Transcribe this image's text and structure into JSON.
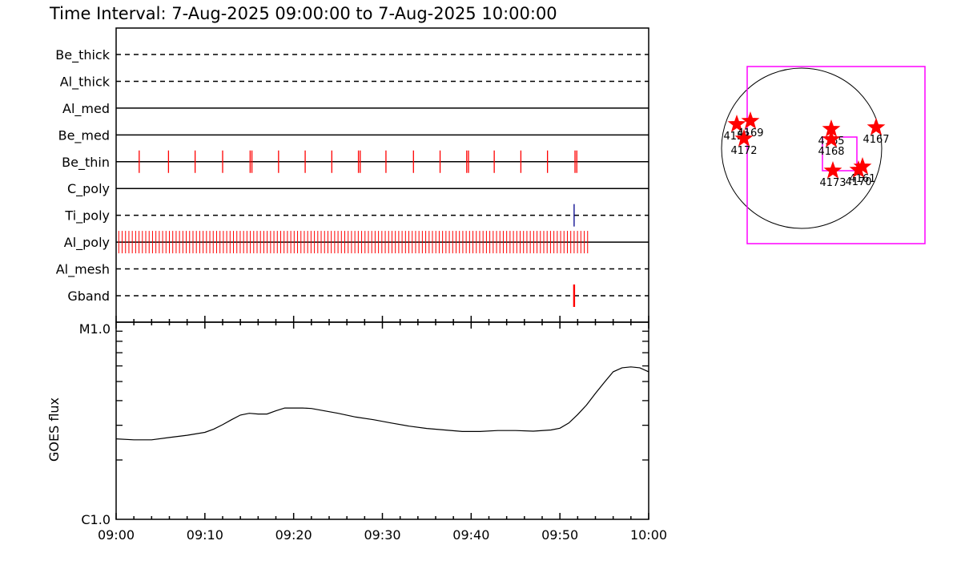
{
  "title": "Time Interval:  7-Aug-2025 09:00:00 to  7-Aug-2025 10:00:00",
  "colors": {
    "event_red": "#ff0000",
    "event_blue": "#00008b",
    "fov_magenta": "#ff00ff",
    "axis": "#000000"
  },
  "chart_data": [
    {
      "type": "timeline",
      "x_unit": "minutes after 09:00",
      "xlim": [
        0,
        60
      ],
      "channels": [
        {
          "name": "Be_thick",
          "line": "dashed",
          "events": []
        },
        {
          "name": "Al_thick",
          "line": "dashed",
          "events": []
        },
        {
          "name": "Al_med",
          "line": "solid",
          "events": []
        },
        {
          "name": "Be_med",
          "line": "solid",
          "events": []
        },
        {
          "name": "Be_thin",
          "line": "solid",
          "color": "red",
          "events": [
            2.6,
            5.9,
            8.9,
            12.0,
            15.1,
            15.3,
            18.3,
            21.3,
            24.3,
            27.3,
            27.5,
            30.4,
            33.5,
            36.5,
            39.5,
            39.7,
            42.6,
            45.6,
            48.6,
            51.7,
            51.9
          ]
        },
        {
          "name": "C_poly",
          "line": "solid",
          "events": []
        },
        {
          "name": "Ti_poly",
          "line": "dashed",
          "color": "darkblue",
          "events": [
            51.6
          ]
        },
        {
          "name": "Al_poly",
          "line": "solid",
          "color": "red",
          "dense_range": [
            0.3,
            53.2
          ]
        },
        {
          "name": "Al_mesh",
          "line": "dashed",
          "events": []
        },
        {
          "name": "Gband",
          "line": "dashed",
          "color": "red",
          "events": [
            51.6
          ]
        }
      ]
    },
    {
      "type": "line",
      "x_unit": "minutes after 09:00",
      "xlim": [
        0,
        60
      ],
      "x_tick_labels": [
        "09:00",
        "09:10",
        "09:20",
        "09:30",
        "09:40",
        "09:50",
        "10:00"
      ],
      "ylabel": "GOES flux",
      "y_scale": "log",
      "ylim": [
        1e-06,
        1e-05
      ],
      "y_tick_labels": [
        "C1.0",
        "M1.0"
      ],
      "series": [
        {
          "x": [
            0,
            2,
            4,
            6,
            8,
            10,
            11,
            12,
            13,
            14,
            15,
            16,
            17,
            18,
            19,
            20,
            21,
            22,
            23,
            25,
            27,
            29,
            31,
            33,
            35,
            37,
            39,
            41,
            43,
            45,
            47,
            49,
            50,
            51,
            52,
            53,
            54,
            55,
            56,
            57,
            58,
            59,
            60
          ],
          "y": [
            2.56e-06,
            2.53e-06,
            2.53e-06,
            2.6e-06,
            2.67e-06,
            2.76e-06,
            2.87e-06,
            3.02e-06,
            3.2e-06,
            3.38e-06,
            3.45e-06,
            3.42e-06,
            3.42e-06,
            3.55e-06,
            3.67e-06,
            3.67e-06,
            3.67e-06,
            3.65e-06,
            3.58e-06,
            3.45e-06,
            3.3e-06,
            3.2e-06,
            3.08e-06,
            2.97e-06,
            2.89e-06,
            2.84e-06,
            2.79e-06,
            2.79e-06,
            2.82e-06,
            2.82e-06,
            2.8e-06,
            2.84e-06,
            2.9e-06,
            3.08e-06,
            3.4e-06,
            3.8e-06,
            4.35e-06,
            4.95e-06,
            5.6e-06,
            5.87e-06,
            5.93e-06,
            5.87e-06,
            5.6e-06
          ]
        }
      ]
    },
    {
      "type": "scatter",
      "description_kind": "solar disk map of active regions",
      "regions": [
        {
          "label": "4153",
          "x": -0.81,
          "y": 0.3
        },
        {
          "label": "4169",
          "x": -0.64,
          "y": 0.34
        },
        {
          "label": "4172",
          "x": -0.72,
          "y": 0.12
        },
        {
          "label": "4165",
          "x": 0.37,
          "y": 0.24
        },
        {
          "label": "4168",
          "x": 0.37,
          "y": 0.11
        },
        {
          "label": "4167",
          "x": 0.93,
          "y": 0.26
        },
        {
          "label": "4173",
          "x": 0.39,
          "y": -0.28
        },
        {
          "label": "4161",
          "x": 0.76,
          "y": -0.23
        },
        {
          "label": "4170",
          "x": 0.71,
          "y": -0.27
        }
      ]
    }
  ]
}
